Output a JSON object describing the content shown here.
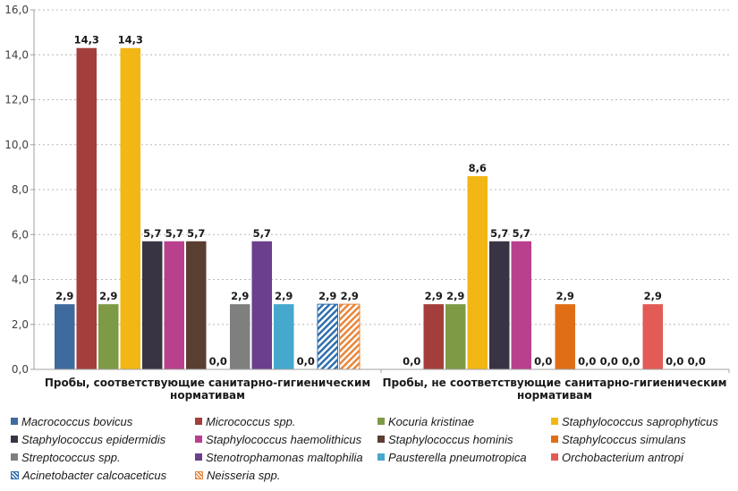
{
  "chart_data": {
    "type": "bar",
    "title": "",
    "xlabel": "",
    "ylabel": "",
    "ylim": [
      0,
      16
    ],
    "yticks": [
      "0,0",
      "2,0",
      "4,0",
      "6,0",
      "8,0",
      "10,0",
      "12,0",
      "14,0",
      "16,0"
    ],
    "ytick_values": [
      0,
      2,
      4,
      6,
      8,
      10,
      12,
      14,
      16
    ],
    "grid": true,
    "legend_position": "bottom",
    "decimal_separator": ",",
    "categories": [
      [
        "Пробы, соответствующие санитарно-гигиеническим",
        "нормативам"
      ],
      [
        "Пробы, не соответствующие санитарно-гигиеническим",
        "нормативам"
      ]
    ],
    "series": [
      {
        "name": "Macrococcus bovicus",
        "color": "#3f6a9e",
        "pattern": "solid",
        "values": [
          2.9,
          0.0
        ]
      },
      {
        "name": "Micrococcus spp.",
        "color": "#a33e3c",
        "pattern": "solid",
        "values": [
          14.3,
          2.9
        ]
      },
      {
        "name": "Kocuria kristinae",
        "color": "#7f9a45",
        "pattern": "solid",
        "values": [
          2.9,
          2.9
        ]
      },
      {
        "name": "Staphylococcus saprophyticus",
        "color": "#f2b714",
        "pattern": "solid",
        "values": [
          14.3,
          8.6
        ]
      },
      {
        "name": "Staphylococcus epidermidis",
        "color": "#393443",
        "pattern": "solid",
        "values": [
          5.7,
          5.7
        ]
      },
      {
        "name": "Staphylococcus haemolithicus",
        "color": "#b8408c",
        "pattern": "solid",
        "values": [
          5.7,
          5.7
        ]
      },
      {
        "name": "Staphylococcus hominis",
        "color": "#5a3e31",
        "pattern": "solid",
        "values": [
          5.7,
          0.0
        ]
      },
      {
        "name": "Staphylcoccus simulans",
        "color": "#e06e17",
        "pattern": "solid",
        "values": [
          0.0,
          2.9
        ]
      },
      {
        "name": "Streptococcus spp.",
        "color": "#7f7f7f",
        "pattern": "solid",
        "values": [
          2.9,
          0.0
        ]
      },
      {
        "name": "Stenotrophamonas maltophilia",
        "color": "#6b3f8c",
        "pattern": "solid",
        "values": [
          5.7,
          0.0
        ]
      },
      {
        "name": "Pausterella pneumotropica",
        "color": "#45a8cc",
        "pattern": "solid",
        "values": [
          2.9,
          0.0
        ]
      },
      {
        "name": "Orchobacterium antropi",
        "color": "#e25b55",
        "pattern": "solid",
        "values": [
          0.0,
          2.9
        ]
      },
      {
        "name": "Acinetobacter calcoaceticus",
        "color": "#2f6fae",
        "pattern": "hatch",
        "values": [
          2.9,
          0.0
        ]
      },
      {
        "name": "Neisseria spp.",
        "color": "#e8863a",
        "pattern": "hatch",
        "values": [
          2.9,
          0.0
        ]
      }
    ],
    "data_labels": [
      [
        "2,9",
        "14,3",
        "2,9",
        "14,3",
        "5,7",
        "5,7",
        "5,7",
        "0,0",
        "2,9",
        "5,7",
        "2,9",
        "0,0",
        "2,9",
        "2,9"
      ],
      [
        "0,0",
        "2,9",
        "2,9",
        "8,6",
        "5,7",
        "5,7",
        "0,0",
        "2,9",
        "0,0",
        "0,0",
        "0,0",
        "2,9",
        "0,0",
        "0,0"
      ]
    ],
    "legend_order": [
      "Macrococcus bovicus",
      "Micrococcus spp.",
      "Kocuria kristinae",
      "Staphylococcus saprophyticus",
      "Staphylococcus epidermidis",
      "Staphylococcus haemolithicus",
      "Staphylococcus hominis",
      "Staphylcoccus simulans",
      "Streptococcus spp.",
      "Stenotrophamonas maltophilia",
      "Pausterella pneumotropica",
      "Orchobacterium antropi",
      "Acinetobacter calcoaceticus",
      "Neisseria spp."
    ]
  }
}
